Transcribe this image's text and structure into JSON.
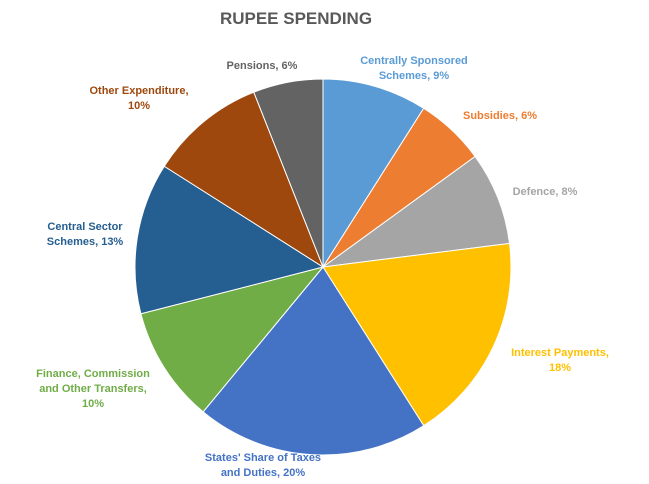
{
  "chart_data": {
    "type": "pie",
    "title": "RUPEE SPENDING",
    "slices": [
      {
        "label_lines": [
          "Centrally Sponsored",
          "Schemes, 9%"
        ],
        "value": 9,
        "color": "#5B9BD5"
      },
      {
        "label_lines": [
          "Subsidies, 6%"
        ],
        "value": 6,
        "color": "#ED7D31"
      },
      {
        "label_lines": [
          "Defence, 8%"
        ],
        "value": 8,
        "color": "#A5A5A5"
      },
      {
        "label_lines": [
          "Interest Payments,",
          "18%"
        ],
        "value": 18,
        "color": "#FFC000"
      },
      {
        "label_lines": [
          "States' Share of Taxes",
          "and Duties, 20%"
        ],
        "value": 20,
        "color": "#4472C4"
      },
      {
        "label_lines": [
          "Finance, Commission",
          "and Other Transfers,",
          "10%"
        ],
        "value": 10,
        "color": "#70AD47"
      },
      {
        "label_lines": [
          "Central Sector",
          "Schemes, 13%"
        ],
        "value": 13,
        "color": "#255E91"
      },
      {
        "label_lines": [
          "Other Expenditure,",
          "10%"
        ],
        "value": 10,
        "color": "#9E480E"
      },
      {
        "label_lines": [
          "Pensions, 6%"
        ],
        "value": 6,
        "color": "#636363"
      }
    ],
    "label_colors": [
      "#5B9BD5",
      "#ED7D31",
      "#A5A5A5",
      "#FFC000",
      "#4472C4",
      "#70AD47",
      "#255E91",
      "#9E480E",
      "#636363"
    ]
  }
}
